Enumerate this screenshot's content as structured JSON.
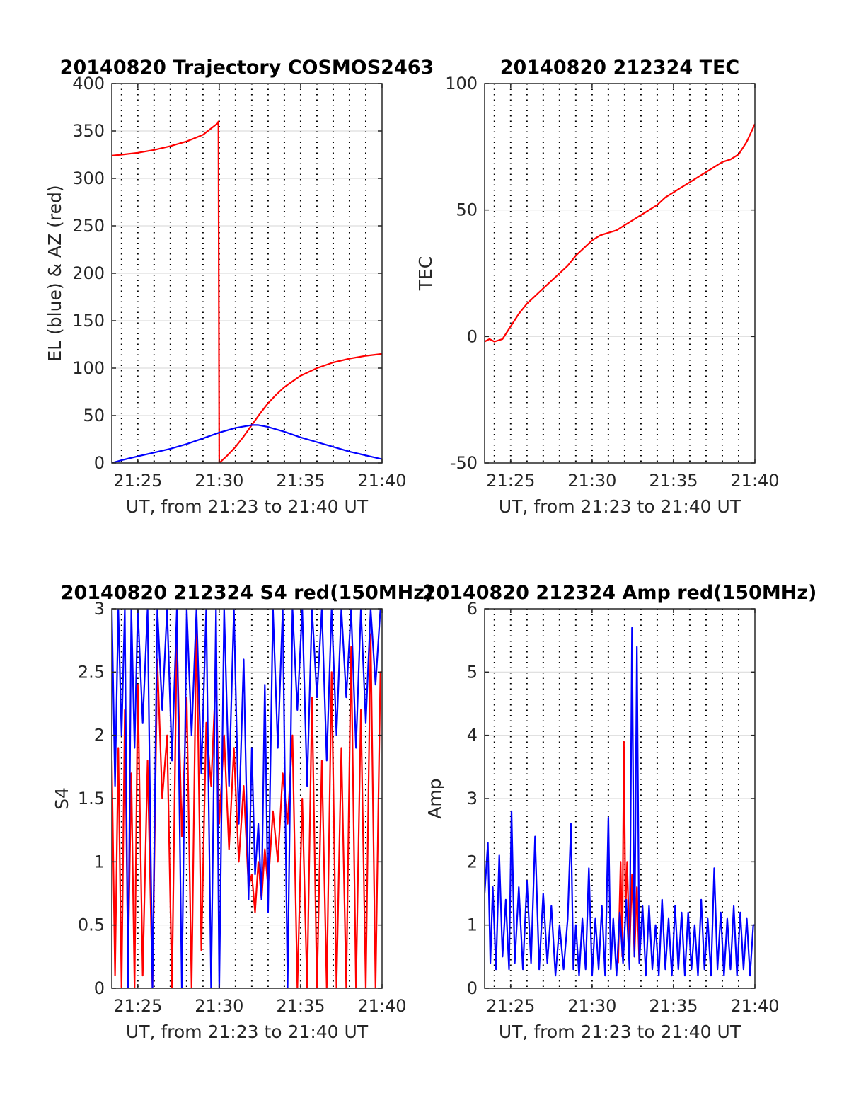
{
  "figure": {
    "colors": {
      "el": "#0000ff",
      "az": "#ff0000",
      "tec": "#ff0000",
      "s4_red": "#ff0000",
      "s4_blue": "#0000ff",
      "amp_red": "#ff0000",
      "amp_blue": "#0000ff"
    }
  },
  "chart_data": [
    {
      "id": "trajectory",
      "type": "line",
      "title": "20140820 Trajectory COSMOS2463",
      "xlabel": "UT, from 21:23 to 21:40 UT",
      "ylabel": "EL (blue) & AZ (red)",
      "x_unit": "minutes after 21:00 UT",
      "xlim": [
        23.4,
        40.0
      ],
      "ylim": [
        0,
        400
      ],
      "xticks": [
        25,
        30,
        35,
        40
      ],
      "xtick_labels": [
        "21:25",
        "21:30",
        "21:35",
        "21:40"
      ],
      "yticks": [
        0,
        50,
        100,
        150,
        200,
        250,
        300,
        350,
        400
      ],
      "ytick_labels": [
        "0",
        "50",
        "100",
        "150",
        "200",
        "250",
        "300",
        "350",
        "400"
      ],
      "minor_x_grid_step": 1,
      "grid": true,
      "series": [
        {
          "key": "az",
          "x": [
            23.4,
            24,
            25,
            26,
            27,
            28,
            29,
            29.9,
            29.95,
            30.0,
            30.5,
            31,
            31.5,
            32,
            32.5,
            33,
            33.5,
            34,
            35,
            36,
            37,
            38,
            39,
            40
          ],
          "y": [
            324,
            325,
            327,
            330,
            334,
            339,
            346,
            358,
            360,
            0,
            8,
            17,
            28,
            40,
            52,
            63,
            72,
            80,
            92,
            100,
            106,
            110,
            113,
            115
          ]
        },
        {
          "key": "el",
          "x": [
            23.4,
            24,
            25,
            26,
            27,
            28,
            29,
            30,
            31,
            32,
            32.4,
            33,
            34,
            35,
            36,
            37,
            38,
            39,
            40
          ],
          "y": [
            0,
            3,
            7,
            11,
            15,
            20,
            26,
            32,
            37,
            40,
            40,
            38,
            33,
            27,
            22,
            17,
            12,
            8,
            4
          ]
        }
      ]
    },
    {
      "id": "tec",
      "type": "line",
      "title": "20140820 212324 TEC",
      "xlabel": "UT, from 21:23 to 21:40 UT",
      "ylabel": "TEC",
      "x_unit": "minutes after 21:00 UT",
      "xlim": [
        23.4,
        40.0
      ],
      "ylim": [
        -50,
        100
      ],
      "xticks": [
        25,
        30,
        35,
        40
      ],
      "xtick_labels": [
        "21:25",
        "21:30",
        "21:35",
        "21:40"
      ],
      "yticks": [
        -50,
        0,
        50,
        100
      ],
      "ytick_labels": [
        "-50",
        "0",
        "50",
        "100"
      ],
      "minor_x_grid_step": 1,
      "grid": true,
      "series": [
        {
          "key": "tec",
          "x": [
            23.4,
            23.7,
            24,
            24.5,
            25,
            25.5,
            26,
            26.5,
            27,
            27.5,
            28,
            28.5,
            29,
            29.5,
            30,
            30.5,
            31,
            31.5,
            32,
            32.5,
            33,
            33.5,
            34,
            34.5,
            35,
            35.5,
            36,
            36.5,
            37,
            37.5,
            38,
            38.5,
            39,
            39.5,
            40
          ],
          "y": [
            -2,
            -1,
            -2,
            -1,
            4,
            9,
            13,
            16,
            19,
            22,
            25,
            28,
            32,
            35,
            38,
            40,
            41,
            42,
            44,
            46,
            48,
            50,
            52,
            55,
            57,
            59,
            61,
            63,
            65,
            67,
            69,
            70,
            72,
            77,
            84
          ]
        }
      ]
    },
    {
      "id": "s4",
      "type": "line",
      "title": "20140820 212324 S4 red(150MHz)",
      "xlabel": "UT, from 21:23 to 21:40 UT",
      "ylabel": "S4",
      "x_unit": "minutes after 21:00 UT",
      "xlim": [
        23.4,
        40.0
      ],
      "ylim": [
        0,
        3
      ],
      "xticks": [
        25,
        30,
        35,
        40
      ],
      "xtick_labels": [
        "21:25",
        "21:30",
        "21:35",
        "21:40"
      ],
      "yticks": [
        0,
        0.5,
        1,
        1.5,
        2,
        2.5,
        3
      ],
      "ytick_labels": [
        "0",
        "0.5",
        "1",
        "1.5",
        "2",
        "2.5",
        "3"
      ],
      "minor_x_grid_step": 1,
      "grid": true,
      "series": [
        {
          "key": "s4_red",
          "x": [
            23.4,
            23.6,
            23.8,
            24.0,
            24.2,
            24.4,
            24.6,
            24.8,
            25.0,
            25.3,
            25.6,
            25.9,
            26.2,
            26.5,
            26.8,
            27.1,
            27.4,
            27.7,
            28.0,
            28.3,
            28.6,
            28.9,
            29.2,
            29.5,
            29.8,
            30.0,
            30.3,
            30.6,
            30.9,
            31.2,
            31.5,
            31.8,
            32.0,
            32.2,
            32.4,
            32.6,
            32.8,
            33.0,
            33.3,
            33.6,
            33.9,
            34.2,
            34.5,
            34.8,
            35.1,
            35.4,
            35.7,
            36.0,
            36.3,
            36.6,
            36.9,
            37.2,
            37.5,
            37.8,
            38.1,
            38.4,
            38.7,
            39.0,
            39.3,
            39.6,
            39.9,
            40.0
          ],
          "y": [
            1.8,
            0.1,
            1.9,
            0.0,
            2.2,
            0.2,
            1.7,
            0.0,
            2.4,
            0.1,
            1.8,
            0.0,
            2.6,
            1.5,
            2.0,
            0.0,
            2.8,
            1.2,
            2.3,
            0.0,
            2.9,
            0.3,
            2.1,
            1.6,
            2.5,
            1.3,
            2.0,
            1.1,
            1.9,
            1.0,
            1.6,
            0.8,
            0.9,
            0.6,
            1.0,
            0.7,
            1.1,
            0.8,
            1.4,
            1.0,
            1.7,
            1.3,
            2.0,
            0.0,
            1.5,
            0.0,
            2.3,
            0.0,
            1.8,
            0.0,
            2.5,
            0.0,
            1.9,
            0.0,
            2.7,
            0.0,
            2.2,
            0.0,
            2.8,
            0.0,
            2.5,
            2.5
          ]
        },
        {
          "key": "s4_blue",
          "x": [
            23.4,
            23.6,
            23.8,
            24.0,
            24.2,
            24.4,
            24.6,
            24.8,
            25.0,
            25.3,
            25.6,
            25.9,
            26.2,
            26.5,
            26.8,
            27.1,
            27.4,
            27.7,
            28.0,
            28.3,
            28.6,
            28.9,
            29.2,
            29.5,
            29.8,
            30.0,
            30.3,
            30.6,
            30.9,
            31.2,
            31.5,
            31.8,
            32.0,
            32.2,
            32.4,
            32.6,
            32.8,
            33.0,
            33.3,
            33.6,
            33.9,
            34.2,
            34.5,
            34.8,
            35.1,
            35.4,
            35.7,
            36.0,
            36.3,
            36.6,
            36.9,
            37.2,
            37.5,
            37.8,
            38.1,
            38.4,
            38.7,
            39.0,
            39.3,
            39.6,
            39.9,
            40.0
          ],
          "y": [
            3.0,
            1.6,
            3.0,
            2.0,
            3.0,
            0.0,
            3.0,
            1.9,
            3.0,
            2.1,
            3.0,
            0.0,
            3.0,
            2.2,
            3.0,
            1.8,
            3.0,
            0.0,
            3.0,
            2.0,
            3.0,
            1.7,
            3.0,
            0.0,
            3.0,
            0.0,
            3.0,
            1.6,
            3.0,
            1.3,
            2.6,
            0.7,
            1.9,
            0.9,
            1.3,
            0.7,
            2.4,
            0.6,
            3.0,
            1.9,
            3.0,
            0.0,
            3.0,
            2.2,
            3.0,
            1.6,
            3.0,
            2.3,
            3.0,
            1.8,
            3.0,
            2.0,
            3.0,
            2.3,
            3.0,
            1.9,
            3.0,
            2.1,
            3.0,
            2.4,
            3.0,
            3.0
          ]
        }
      ]
    },
    {
      "id": "amp",
      "type": "line",
      "title": "20140820 212324 Amp red(150MHz)",
      "xlabel": "UT, from 21:23 to 21:40 UT",
      "ylabel": "Amp",
      "x_unit": "minutes after 21:00 UT",
      "xlim": [
        23.4,
        40.0
      ],
      "ylim": [
        0,
        6
      ],
      "xticks": [
        25,
        30,
        35,
        40
      ],
      "xtick_labels": [
        "21:25",
        "21:30",
        "21:35",
        "21:40"
      ],
      "yticks": [
        0,
        1,
        2,
        3,
        4,
        5,
        6
      ],
      "ytick_labels": [
        "0",
        "1",
        "2",
        "3",
        "4",
        "5",
        "6"
      ],
      "minor_x_grid_step": 1,
      "grid": true,
      "series": [
        {
          "key": "amp_red",
          "x": [
            31.6,
            31.75,
            31.85,
            31.95,
            32.05,
            32.15,
            32.3,
            32.45,
            32.6,
            32.75,
            32.9
          ],
          "y": [
            0.4,
            2.0,
            0.5,
            3.9,
            1.2,
            2.0,
            0.6,
            1.8,
            0.5,
            1.6,
            0.4
          ]
        },
        {
          "key": "amp_blue",
          "x": [
            23.4,
            23.6,
            23.75,
            23.9,
            24.1,
            24.3,
            24.5,
            24.7,
            24.9,
            25.05,
            25.25,
            25.5,
            25.75,
            26.0,
            26.25,
            26.5,
            26.75,
            27.0,
            27.25,
            27.5,
            27.75,
            28.0,
            28.25,
            28.5,
            28.7,
            28.85,
            29.0,
            29.2,
            29.4,
            29.6,
            29.8,
            30.0,
            30.2,
            30.4,
            30.6,
            30.8,
            31.0,
            31.15,
            31.3,
            31.5,
            31.7,
            31.9,
            32.1,
            32.3,
            32.45,
            32.6,
            32.75,
            32.9,
            33.1,
            33.3,
            33.5,
            33.7,
            33.9,
            34.1,
            34.3,
            34.5,
            34.7,
            34.9,
            35.1,
            35.3,
            35.5,
            35.7,
            35.9,
            36.1,
            36.3,
            36.5,
            36.7,
            36.9,
            37.1,
            37.3,
            37.5,
            37.7,
            37.9,
            38.1,
            38.3,
            38.5,
            38.7,
            38.9,
            39.1,
            39.3,
            39.5,
            39.7,
            39.9,
            40.0
          ],
          "y": [
            1.5,
            2.3,
            0.4,
            1.6,
            0.3,
            2.1,
            0.5,
            1.4,
            0.3,
            2.8,
            0.4,
            1.6,
            0.3,
            1.7,
            0.4,
            2.4,
            0.3,
            1.5,
            0.4,
            1.3,
            0.2,
            1.0,
            0.3,
            1.1,
            2.6,
            0.3,
            1.0,
            0.2,
            1.1,
            0.3,
            1.9,
            0.2,
            1.1,
            0.3,
            1.3,
            0.2,
            2.7,
            0.3,
            1.1,
            0.2,
            1.2,
            0.4,
            1.4,
            0.3,
            5.7,
            0.5,
            5.4,
            0.4,
            1.3,
            0.2,
            1.3,
            0.3,
            1.0,
            0.2,
            1.4,
            0.3,
            1.1,
            0.2,
            1.3,
            0.3,
            1.2,
            0.2,
            1.2,
            0.3,
            1.0,
            0.2,
            1.4,
            0.3,
            1.1,
            0.2,
            1.9,
            0.3,
            1.2,
            0.2,
            1.1,
            0.3,
            1.3,
            0.2,
            1.2,
            0.3,
            1.1,
            0.2,
            1.0,
            1.0
          ]
        }
      ]
    }
  ]
}
